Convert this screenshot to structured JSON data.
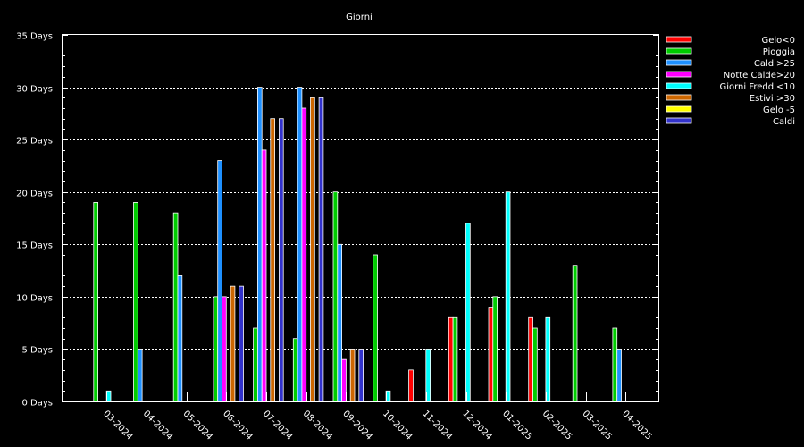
{
  "chart_data": {
    "type": "bar",
    "title": "Giorni",
    "xlabel": "",
    "ylabel": "",
    "ylim": [
      0,
      35
    ],
    "y_ticks": [
      {
        "value": 0,
        "label": "0 Days"
      },
      {
        "value": 5,
        "label": "5 Days"
      },
      {
        "value": 10,
        "label": "10 Days"
      },
      {
        "value": 15,
        "label": "15 Days"
      },
      {
        "value": 20,
        "label": "20 Days"
      },
      {
        "value": 25,
        "label": "25 Days"
      },
      {
        "value": 30,
        "label": "30 Days"
      },
      {
        "value": 35,
        "label": "35 Days"
      }
    ],
    "grid": true,
    "legend_position": "top-right",
    "categories": [
      "03-2024",
      "04-2024",
      "05-2024",
      "06-2024",
      "07-2024",
      "08-2024",
      "09-2024",
      "10-2024",
      "11-2024",
      "12-2024",
      "01-2025",
      "02-2025",
      "03-2025",
      "04-2025"
    ],
    "series": [
      {
        "name": "Gelo<0",
        "color": "#ff0000",
        "values": [
          0,
          0,
          0,
          0,
          0,
          0,
          0,
          0,
          3,
          8,
          9,
          8,
          0,
          0
        ]
      },
      {
        "name": "Pioggia",
        "color": "#00cc00",
        "values": [
          19,
          19,
          18,
          10,
          7,
          6,
          20,
          14,
          0,
          8,
          10,
          7,
          13,
          7
        ]
      },
      {
        "name": "Caldi>25",
        "color": "#1e90ff",
        "values": [
          0,
          5,
          12,
          23,
          30,
          30,
          15,
          0,
          0,
          0,
          0,
          0,
          0,
          5
        ]
      },
      {
        "name": "Notte Calde>20",
        "color": "#ff00ff",
        "values": [
          0,
          0,
          0,
          10,
          24,
          28,
          4,
          0,
          0,
          0,
          0,
          0,
          0,
          0
        ]
      },
      {
        "name": "Giorni Freddi<10",
        "color": "#00ffff",
        "values": [
          1,
          0,
          0,
          0,
          0,
          0,
          0,
          1,
          5,
          17,
          20,
          8,
          0,
          0
        ]
      },
      {
        "name": "Estivi >30",
        "color": "#cc6600",
        "values": [
          0,
          0,
          0,
          11,
          27,
          29,
          5,
          0,
          0,
          0,
          0,
          0,
          0,
          0
        ]
      },
      {
        "name": "Gelo -5",
        "color": "#ffff00",
        "values": [
          0,
          0,
          0,
          0,
          0,
          0,
          0,
          0,
          0,
          0,
          0,
          0,
          0,
          0
        ]
      },
      {
        "name": "Caldi",
        "color": "#3333cc",
        "values": [
          0,
          0,
          0,
          11,
          27,
          29,
          5,
          0,
          0,
          0,
          0,
          0,
          0,
          0
        ]
      }
    ]
  }
}
